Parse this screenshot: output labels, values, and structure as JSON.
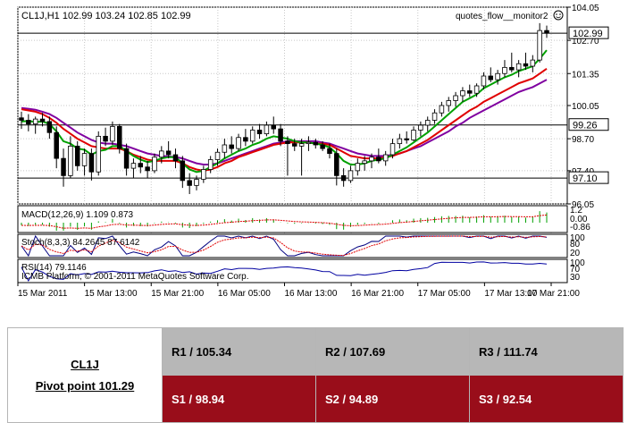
{
  "chart_data": {
    "type": "candlestick",
    "symbol_header": "CL1J,H1  102.99 103.24 102.85 102.99",
    "indicator_name": "quotes_flow__monitor2",
    "ylim": [
      96.05,
      104.05
    ],
    "price_ticks": [
      "104.05",
      "102.70",
      "101.35",
      "100.05",
      "98.70",
      "97.40",
      "96.05"
    ],
    "price_tick_values": [
      104.05,
      102.7,
      101.35,
      100.05,
      98.7,
      97.4,
      96.05
    ],
    "price_levels": [
      {
        "label": "102.99",
        "value": 102.99
      },
      {
        "label": "99.26",
        "value": 99.26
      },
      {
        "label": "97.10",
        "value": 97.1
      }
    ],
    "x_labels": [
      "15 Mar 2011",
      "15 Mar 13:00",
      "15 Mar 21:00",
      "16 Mar 05:00",
      "16 Mar 13:00",
      "16 Mar 21:00",
      "17 Mar 05:00",
      "17 Mar 13:00",
      "17 Mar 21:00"
    ],
    "candles": [
      {
        "o": 99.55,
        "h": 99.8,
        "l": 99.1,
        "c": 99.45
      },
      {
        "o": 99.45,
        "h": 99.7,
        "l": 99.0,
        "c": 99.3
      },
      {
        "o": 99.3,
        "h": 99.6,
        "l": 98.9,
        "c": 99.5
      },
      {
        "o": 99.5,
        "h": 99.75,
        "l": 99.2,
        "c": 99.4
      },
      {
        "o": 99.4,
        "h": 99.6,
        "l": 98.7,
        "c": 98.95
      },
      {
        "o": 98.95,
        "h": 99.2,
        "l": 97.5,
        "c": 97.9
      },
      {
        "o": 97.9,
        "h": 98.3,
        "l": 96.75,
        "c": 97.2
      },
      {
        "o": 97.2,
        "h": 98.8,
        "l": 97.1,
        "c": 98.4
      },
      {
        "o": 98.4,
        "h": 98.6,
        "l": 97.4,
        "c": 97.6
      },
      {
        "o": 97.6,
        "h": 98.3,
        "l": 97.2,
        "c": 98.1
      },
      {
        "o": 98.1,
        "h": 98.3,
        "l": 97.0,
        "c": 97.35
      },
      {
        "o": 97.35,
        "h": 99.0,
        "l": 97.2,
        "c": 98.8
      },
      {
        "o": 98.8,
        "h": 99.15,
        "l": 98.4,
        "c": 98.6
      },
      {
        "o": 98.6,
        "h": 99.4,
        "l": 98.45,
        "c": 99.2
      },
      {
        "o": 99.2,
        "h": 99.3,
        "l": 98.1,
        "c": 98.3
      },
      {
        "o": 98.3,
        "h": 98.5,
        "l": 97.2,
        "c": 97.5
      },
      {
        "o": 97.5,
        "h": 97.9,
        "l": 97.1,
        "c": 97.7
      },
      {
        "o": 97.7,
        "h": 98.0,
        "l": 97.3,
        "c": 97.55
      },
      {
        "o": 97.55,
        "h": 97.8,
        "l": 97.1,
        "c": 97.4
      },
      {
        "o": 97.4,
        "h": 98.1,
        "l": 97.3,
        "c": 97.95
      },
      {
        "o": 97.95,
        "h": 98.4,
        "l": 97.7,
        "c": 98.2
      },
      {
        "o": 98.2,
        "h": 98.6,
        "l": 97.9,
        "c": 98.05
      },
      {
        "o": 98.05,
        "h": 98.3,
        "l": 97.5,
        "c": 97.8
      },
      {
        "o": 97.8,
        "h": 98.0,
        "l": 96.7,
        "c": 97.0
      },
      {
        "o": 97.0,
        "h": 97.3,
        "l": 96.45,
        "c": 96.8
      },
      {
        "o": 96.8,
        "h": 97.2,
        "l": 96.6,
        "c": 97.05
      },
      {
        "o": 97.05,
        "h": 97.6,
        "l": 96.9,
        "c": 97.45
      },
      {
        "o": 97.45,
        "h": 98.0,
        "l": 97.3,
        "c": 97.85
      },
      {
        "o": 97.85,
        "h": 98.3,
        "l": 97.6,
        "c": 98.15
      },
      {
        "o": 98.15,
        "h": 98.7,
        "l": 97.9,
        "c": 98.45
      },
      {
        "o": 98.45,
        "h": 98.8,
        "l": 98.1,
        "c": 98.3
      },
      {
        "o": 98.3,
        "h": 98.9,
        "l": 98.2,
        "c": 98.75
      },
      {
        "o": 98.75,
        "h": 99.1,
        "l": 98.4,
        "c": 98.6
      },
      {
        "o": 98.6,
        "h": 99.2,
        "l": 98.5,
        "c": 99.05
      },
      {
        "o": 99.05,
        "h": 99.3,
        "l": 98.7,
        "c": 98.9
      },
      {
        "o": 98.9,
        "h": 99.4,
        "l": 98.8,
        "c": 99.25
      },
      {
        "o": 99.25,
        "h": 99.6,
        "l": 98.9,
        "c": 99.1
      },
      {
        "o": 99.1,
        "h": 99.3,
        "l": 98.4,
        "c": 98.6
      },
      {
        "o": 98.6,
        "h": 98.8,
        "l": 97.2,
        "c": 98.5
      },
      {
        "o": 98.5,
        "h": 98.7,
        "l": 98.2,
        "c": 98.4
      },
      {
        "o": 98.4,
        "h": 98.7,
        "l": 97.2,
        "c": 98.5
      },
      {
        "o": 98.5,
        "h": 98.8,
        "l": 98.2,
        "c": 98.55
      },
      {
        "o": 98.55,
        "h": 98.7,
        "l": 98.3,
        "c": 98.45
      },
      {
        "o": 98.45,
        "h": 98.6,
        "l": 98.2,
        "c": 98.3
      },
      {
        "o": 98.3,
        "h": 98.5,
        "l": 97.9,
        "c": 98.1
      },
      {
        "o": 98.1,
        "h": 98.3,
        "l": 96.8,
        "c": 97.2
      },
      {
        "o": 97.2,
        "h": 97.5,
        "l": 96.75,
        "c": 97.0
      },
      {
        "o": 97.0,
        "h": 97.6,
        "l": 96.9,
        "c": 97.4
      },
      {
        "o": 97.4,
        "h": 97.9,
        "l": 97.2,
        "c": 97.7
      },
      {
        "o": 97.7,
        "h": 98.0,
        "l": 97.4,
        "c": 97.8
      },
      {
        "o": 97.8,
        "h": 98.1,
        "l": 97.5,
        "c": 97.95
      },
      {
        "o": 97.95,
        "h": 98.3,
        "l": 97.7,
        "c": 97.8
      },
      {
        "o": 97.8,
        "h": 98.2,
        "l": 97.6,
        "c": 98.05
      },
      {
        "o": 98.05,
        "h": 98.7,
        "l": 97.9,
        "c": 98.5
      },
      {
        "o": 98.5,
        "h": 98.9,
        "l": 98.3,
        "c": 98.7
      },
      {
        "o": 98.7,
        "h": 99.0,
        "l": 98.5,
        "c": 98.65
      },
      {
        "o": 98.65,
        "h": 99.2,
        "l": 98.6,
        "c": 99.05
      },
      {
        "o": 99.05,
        "h": 99.4,
        "l": 98.8,
        "c": 99.25
      },
      {
        "o": 99.25,
        "h": 99.6,
        "l": 99.0,
        "c": 99.45
      },
      {
        "o": 99.45,
        "h": 99.9,
        "l": 99.3,
        "c": 99.75
      },
      {
        "o": 99.75,
        "h": 100.2,
        "l": 99.6,
        "c": 100.05
      },
      {
        "o": 100.05,
        "h": 100.4,
        "l": 99.8,
        "c": 100.25
      },
      {
        "o": 100.25,
        "h": 100.6,
        "l": 100.0,
        "c": 100.45
      },
      {
        "o": 100.45,
        "h": 100.8,
        "l": 100.2,
        "c": 100.65
      },
      {
        "o": 100.65,
        "h": 100.9,
        "l": 100.4,
        "c": 100.55
      },
      {
        "o": 100.55,
        "h": 100.95,
        "l": 100.4,
        "c": 100.85
      },
      {
        "o": 100.85,
        "h": 101.4,
        "l": 100.7,
        "c": 101.25
      },
      {
        "o": 101.25,
        "h": 101.6,
        "l": 101.0,
        "c": 101.1
      },
      {
        "o": 101.1,
        "h": 101.5,
        "l": 100.9,
        "c": 101.35
      },
      {
        "o": 101.35,
        "h": 101.9,
        "l": 101.2,
        "c": 101.6
      },
      {
        "o": 101.6,
        "h": 102.2,
        "l": 101.4,
        "c": 101.5
      },
      {
        "o": 101.5,
        "h": 101.9,
        "l": 101.2,
        "c": 101.75
      },
      {
        "o": 101.75,
        "h": 102.2,
        "l": 101.5,
        "c": 101.65
      },
      {
        "o": 101.65,
        "h": 102.1,
        "l": 101.4,
        "c": 101.9
      },
      {
        "o": 101.9,
        "h": 103.4,
        "l": 101.8,
        "c": 103.1
      },
      {
        "o": 103.1,
        "h": 103.3,
        "l": 102.8,
        "c": 102.99
      }
    ],
    "ma_green": [
      99.4,
      99.42,
      99.38,
      99.4,
      99.3,
      99.0,
      98.6,
      98.5,
      98.3,
      98.25,
      98.05,
      98.2,
      98.25,
      98.4,
      98.4,
      98.2,
      98.0,
      97.85,
      97.75,
      97.8,
      97.9,
      97.95,
      97.95,
      97.7,
      97.45,
      97.35,
      97.4,
      97.55,
      97.7,
      97.9,
      98.05,
      98.2,
      98.3,
      98.45,
      98.55,
      98.7,
      98.8,
      98.75,
      98.7,
      98.6,
      98.55,
      98.55,
      98.5,
      98.45,
      98.35,
      98.1,
      97.8,
      97.65,
      97.65,
      97.7,
      97.8,
      97.85,
      97.9,
      98.05,
      98.2,
      98.35,
      98.55,
      98.75,
      98.95,
      99.2,
      99.45,
      99.7,
      99.95,
      100.2,
      100.35,
      100.5,
      100.75,
      100.9,
      101.05,
      101.2,
      101.3,
      101.45,
      101.55,
      101.65,
      101.95,
      102.3
    ],
    "ma_red": [
      99.9,
      99.85,
      99.8,
      99.7,
      99.55,
      99.35,
      99.1,
      98.9,
      98.7,
      98.55,
      98.4,
      98.35,
      98.3,
      98.3,
      98.3,
      98.2,
      98.05,
      97.95,
      97.85,
      97.8,
      97.8,
      97.8,
      97.8,
      97.7,
      97.55,
      97.45,
      97.4,
      97.45,
      97.55,
      97.7,
      97.8,
      97.95,
      98.05,
      98.15,
      98.25,
      98.35,
      98.45,
      98.5,
      98.55,
      98.55,
      98.55,
      98.55,
      98.5,
      98.5,
      98.45,
      98.3,
      98.15,
      98.0,
      97.95,
      97.9,
      97.9,
      97.9,
      97.95,
      98.0,
      98.1,
      98.2,
      98.35,
      98.5,
      98.65,
      98.85,
      99.05,
      99.25,
      99.45,
      99.65,
      99.85,
      100.0,
      100.2,
      100.35,
      100.5,
      100.65,
      100.8,
      100.95,
      101.05,
      101.15,
      101.35,
      101.55
    ],
    "ma_purple": [
      99.95,
      99.92,
      99.88,
      99.8,
      99.7,
      99.55,
      99.35,
      99.15,
      98.95,
      98.8,
      98.65,
      98.55,
      98.5,
      98.5,
      98.45,
      98.4,
      98.3,
      98.2,
      98.1,
      98.05,
      98.0,
      97.98,
      97.95,
      97.9,
      97.8,
      97.7,
      97.65,
      97.65,
      97.7,
      97.8,
      97.9,
      98.0,
      98.1,
      98.2,
      98.3,
      98.4,
      98.5,
      98.55,
      98.6,
      98.6,
      98.6,
      98.6,
      98.6,
      98.55,
      98.5,
      98.4,
      98.3,
      98.2,
      98.1,
      98.05,
      98.0,
      98.0,
      98.0,
      98.05,
      98.1,
      98.2,
      98.3,
      98.4,
      98.55,
      98.7,
      98.85,
      99.0,
      99.2,
      99.35,
      99.55,
      99.7,
      99.85,
      100.0,
      100.15,
      100.3,
      100.45,
      100.6,
      100.7,
      100.8,
      100.95,
      101.1
    ],
    "panels": {
      "macd": {
        "label": "MACD(12,26,9) 1.109 0.873",
        "ticks": [
          "1.2",
          "0.00",
          "-0.86"
        ],
        "ylim": [
          -0.86,
          1.2
        ]
      },
      "stoch": {
        "label": "Stoch(8,3,3) 84.2645 87.6142",
        "ticks": [
          "100",
          "80",
          "20"
        ],
        "ylim": [
          0,
          100
        ]
      },
      "rsi": {
        "label": "RSI(14) 79.1146",
        "ticks": [
          "100",
          "70",
          "30"
        ],
        "ylim": [
          0,
          100
        ]
      }
    },
    "copyright": "ICMB Platform, © 2001-2011 MetaQuotes Software Corp."
  },
  "colors": {
    "bull_candle": "#ffffff",
    "bear_candle": "#000000",
    "ma_green": "#00a000",
    "ma_red": "#e00000",
    "ma_purple": "#8000a0",
    "macd_hist": "#00a000",
    "signal": "#e00000",
    "stoch_main": "#000080",
    "rsi_line": "#0000a0"
  },
  "pivot": {
    "ticker": "CL1J",
    "pivot_label": "Pivot point 101.29",
    "r1": "R1 / 105.34",
    "r2": "R2  / 107.69",
    "r3": "R3 / 111.74",
    "s1": "S1 / 98.94",
    "s2": "S2 /  94.89",
    "s3": "S3 /  92.54"
  }
}
